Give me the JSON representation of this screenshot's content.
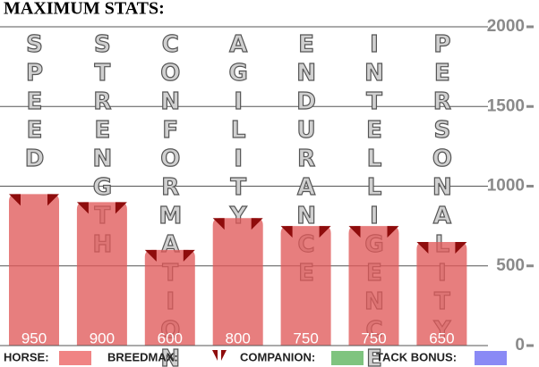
{
  "chart_data": {
    "type": "bar",
    "title": "MAXIMUM STATS:",
    "categories": [
      "SPEED",
      "STRENGTH",
      "CONFORMATION",
      "AGILITY",
      "ENDURANCE",
      "INTELLIGENCE",
      "PERSONALITY"
    ],
    "values": [
      950,
      900,
      600,
      800,
      750,
      750,
      650
    ],
    "color": "#e05a5a",
    "ylim": [
      0,
      2000
    ],
    "yticks": [
      0,
      500,
      1000,
      1500,
      2000
    ],
    "grid": true,
    "legend": [
      {
        "name": "HORSE:",
        "color": "#f08484"
      },
      {
        "name": "BREEDMAX:",
        "color": "#8e0c0c"
      },
      {
        "name": "COMPANION:",
        "color": "#7fc47f"
      },
      {
        "name": "TACK BONUS:",
        "color": "#8a8af5"
      }
    ]
  }
}
